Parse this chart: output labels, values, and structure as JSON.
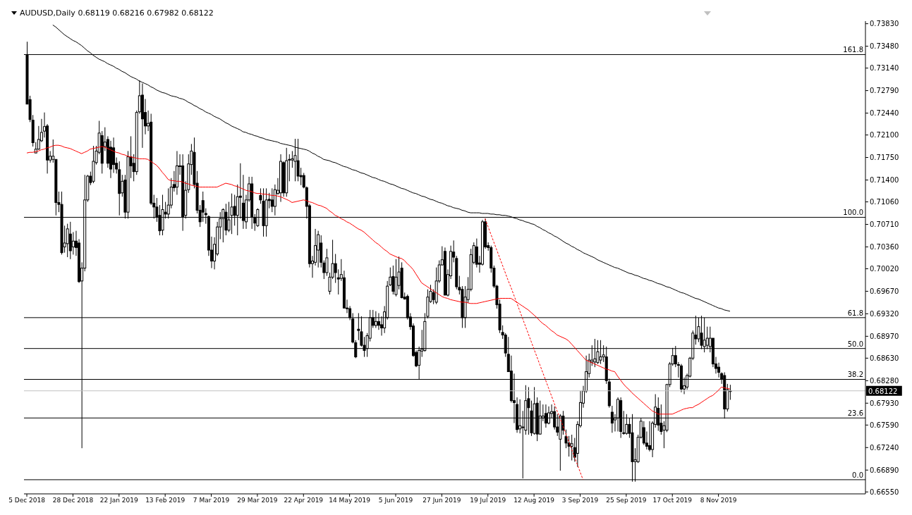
{
  "chart_data": {
    "type": "candlestick",
    "title": "AUDUSD,Daily 0.68119 0.68216 0.67982 0.68122",
    "categories": [
      "5 Dec 2018",
      null,
      null,
      null,
      null,
      null,
      null,
      null,
      null,
      null,
      null,
      null,
      null,
      null,
      null,
      null,
      "28 Dec 2018",
      null,
      null,
      null,
      null,
      null,
      null,
      null,
      null,
      null,
      null,
      null,
      null,
      null,
      null,
      null,
      "22 Jan 2019",
      null,
      null,
      null,
      null,
      null,
      null,
      null,
      null,
      null,
      null,
      null,
      null,
      null,
      null,
      null,
      "13 Feb 2019",
      null,
      null,
      null,
      null,
      null,
      null,
      null,
      null,
      null,
      null,
      null,
      null,
      null,
      null,
      null,
      "7 Mar 2019",
      null,
      null,
      null,
      null,
      null,
      null,
      null,
      null,
      null,
      null,
      null,
      null,
      null,
      null,
      null,
      "29 Mar 2019",
      null,
      null,
      null,
      null,
      null,
      null,
      null,
      null,
      null,
      null,
      null,
      null,
      null,
      null,
      null,
      "22 Apr 2019",
      null,
      null,
      null,
      null,
      null,
      null,
      null,
      null,
      null,
      null,
      null,
      null,
      null,
      null,
      null,
      "14 May 2019",
      null,
      null,
      null,
      null,
      null,
      null,
      null,
      null,
      null,
      null,
      null,
      null,
      null,
      null,
      null,
      "5 Jun 2019",
      null,
      null,
      null,
      null,
      null,
      null,
      null,
      null,
      null,
      null,
      null,
      null,
      null,
      null,
      null,
      "27 Jun 2019",
      null,
      null,
      null,
      null,
      null,
      null,
      null,
      null,
      null,
      null,
      null,
      null,
      null,
      null,
      null,
      "19 Jul 2019",
      null,
      null,
      null,
      null,
      null,
      null,
      null,
      null,
      null,
      null,
      null,
      null,
      null,
      null,
      null,
      "12 Aug 2019",
      null,
      null,
      null,
      null,
      null,
      null,
      null,
      null,
      null,
      null,
      null,
      null,
      null,
      null,
      null,
      "3 Sep 2019",
      null,
      null,
      null,
      null,
      null,
      null,
      null,
      null,
      null,
      null,
      null,
      null,
      null,
      null,
      null,
      "25 Sep 2019",
      null,
      null,
      null,
      null,
      null,
      null,
      null,
      null,
      null,
      null,
      null,
      null,
      null,
      null,
      null,
      "17 Oct 2019",
      null,
      null,
      null,
      null,
      null,
      null,
      null,
      null,
      null,
      null,
      null,
      null,
      null,
      null,
      null,
      "8 Nov 2019",
      null,
      null,
      null,
      null
    ],
    "ohlc": [
      [
        0.7335,
        0.7355,
        0.7258,
        0.7258
      ],
      [
        0.7265,
        0.7271,
        0.723,
        0.7234
      ],
      [
        0.7233,
        0.7241,
        0.7192,
        0.7198
      ],
      [
        0.7182,
        0.7199,
        0.7182,
        0.7188
      ],
      [
        0.7188,
        0.7224,
        0.7187,
        0.7203
      ],
      [
        0.7201,
        0.7235,
        0.7199,
        0.7214
      ],
      [
        0.7216,
        0.7245,
        0.7206,
        0.7223
      ],
      [
        0.7224,
        0.7227,
        0.715,
        0.7171
      ],
      [
        0.7171,
        0.7185,
        0.7167,
        0.7177
      ],
      [
        0.7172,
        0.7203,
        0.7167,
        0.7177
      ],
      [
        0.7172,
        0.7172,
        0.7085,
        0.7105
      ],
      [
        0.7105,
        0.7122,
        0.709,
        0.7102
      ],
      [
        0.7102,
        0.7122,
        0.7024,
        0.7027
      ],
      [
        0.7036,
        0.7069,
        0.7027,
        0.7042
      ],
      [
        0.7041,
        0.7072,
        0.702,
        0.7064
      ],
      [
        0.7056,
        0.7075,
        0.7017,
        0.703
      ],
      [
        0.7036,
        0.7059,
        0.7024,
        0.7045
      ],
      [
        0.7045,
        0.7061,
        0.7022,
        0.7035
      ],
      [
        0.7042,
        0.7048,
        0.698,
        0.6982
      ],
      [
        0.6983,
        0.7012,
        0.6723,
        0.7003
      ],
      [
        0.7003,
        0.7148,
        0.6998,
        0.7109
      ],
      [
        0.7109,
        0.7148,
        0.7106,
        0.7146
      ],
      [
        0.7146,
        0.7153,
        0.7132,
        0.7136
      ],
      [
        0.7138,
        0.7193,
        0.7135,
        0.7169
      ],
      [
        0.7167,
        0.7193,
        0.7164,
        0.7185
      ],
      [
        0.7183,
        0.7232,
        0.718,
        0.7213
      ],
      [
        0.7209,
        0.7216,
        0.715,
        0.7166
      ],
      [
        0.7192,
        0.7222,
        0.7185,
        0.7199
      ],
      [
        0.7203,
        0.7208,
        0.7159,
        0.7166
      ],
      [
        0.7191,
        0.7201,
        0.7143,
        0.7157
      ],
      [
        0.719,
        0.7206,
        0.7151,
        0.7164
      ],
      [
        0.7166,
        0.7175,
        0.715,
        0.7157
      ],
      [
        0.7156,
        0.7169,
        0.7085,
        0.7119
      ],
      [
        0.712,
        0.7148,
        0.7114,
        0.7138
      ],
      [
        0.714,
        0.7148,
        0.708,
        0.709
      ],
      [
        0.709,
        0.7185,
        0.708,
        0.7176
      ],
      [
        0.7176,
        0.7208,
        0.7143,
        0.7162
      ],
      [
        0.7166,
        0.718,
        0.7138,
        0.7153
      ],
      [
        0.7153,
        0.7248,
        0.7148,
        0.7245
      ],
      [
        0.7246,
        0.7295,
        0.7243,
        0.7271
      ],
      [
        0.7272,
        0.729,
        0.719,
        0.7235
      ],
      [
        0.7245,
        0.7266,
        0.7211,
        0.7224
      ],
      [
        0.7224,
        0.7248,
        0.7216,
        0.7228
      ],
      [
        0.723,
        0.7243,
        0.7101,
        0.7104
      ],
      [
        0.7104,
        0.7117,
        0.708,
        0.7098
      ],
      [
        0.7098,
        0.7112,
        0.7075,
        0.7082
      ],
      [
        0.7085,
        0.7101,
        0.7054,
        0.7061
      ],
      [
        0.7062,
        0.7117,
        0.7054,
        0.7094
      ],
      [
        0.709,
        0.7106,
        0.708,
        0.7087
      ],
      [
        0.7087,
        0.7127,
        0.708,
        0.7101
      ],
      [
        0.7101,
        0.7143,
        0.7096,
        0.7129
      ],
      [
        0.7133,
        0.7154,
        0.7122,
        0.7128
      ],
      [
        0.7129,
        0.7185,
        0.7117,
        0.7162
      ],
      [
        0.7162,
        0.718,
        0.7148,
        0.7162
      ],
      [
        0.7162,
        0.718,
        0.7061,
        0.7083
      ],
      [
        0.7085,
        0.7138,
        0.708,
        0.7124
      ],
      [
        0.7125,
        0.718,
        0.712,
        0.7165
      ],
      [
        0.7164,
        0.7196,
        0.7148,
        0.7185
      ],
      [
        0.7183,
        0.7206,
        0.7127,
        0.7133
      ],
      [
        0.7135,
        0.7154,
        0.7088,
        0.7093
      ],
      [
        0.7093,
        0.7101,
        0.7067,
        0.7075
      ],
      [
        0.7108,
        0.7122,
        0.7075,
        0.709
      ],
      [
        0.7088,
        0.7096,
        0.7072,
        0.7086
      ],
      [
        0.7083,
        0.7085,
        0.7022,
        0.7031
      ],
      [
        0.7031,
        0.7052,
        0.7003,
        0.7014
      ],
      [
        0.7014,
        0.7051,
        0.7001,
        0.704
      ],
      [
        0.7025,
        0.7075,
        0.7022,
        0.7067
      ],
      [
        0.7067,
        0.709,
        0.7048,
        0.708
      ],
      [
        0.708,
        0.7096,
        0.7043,
        0.7094
      ],
      [
        0.709,
        0.7103,
        0.7054,
        0.7062
      ],
      [
        0.7062,
        0.7106,
        0.7059,
        0.7078
      ],
      [
        0.7085,
        0.7119,
        0.7056,
        0.7098
      ],
      [
        0.7099,
        0.7117,
        0.7069,
        0.7085
      ],
      [
        0.7085,
        0.7133,
        0.7054,
        0.7114
      ],
      [
        0.7115,
        0.7166,
        0.708,
        0.7113
      ],
      [
        0.7104,
        0.7148,
        0.7064,
        0.7077
      ],
      [
        0.7075,
        0.7117,
        0.7064,
        0.7109
      ],
      [
        0.7109,
        0.7145,
        0.7106,
        0.7134
      ],
      [
        0.7134,
        0.7145,
        0.7064,
        0.7083
      ],
      [
        0.7082,
        0.7087,
        0.7061,
        0.7073
      ],
      [
        0.7069,
        0.7096,
        0.7067,
        0.7094
      ],
      [
        0.7116,
        0.7127,
        0.7103,
        0.7109
      ],
      [
        0.7107,
        0.7127,
        0.7052,
        0.7069
      ],
      [
        0.7069,
        0.7127,
        0.7052,
        0.7109
      ],
      [
        0.711,
        0.712,
        0.7096,
        0.7108
      ],
      [
        0.7109,
        0.7127,
        0.709,
        0.7099
      ],
      [
        0.7099,
        0.7133,
        0.7085,
        0.7125
      ],
      [
        0.7119,
        0.7143,
        0.7117,
        0.7124
      ],
      [
        0.712,
        0.718,
        0.7106,
        0.7169
      ],
      [
        0.7167,
        0.7169,
        0.7114,
        0.712
      ],
      [
        0.712,
        0.719,
        0.7114,
        0.717
      ],
      [
        0.7171,
        0.718,
        0.7138,
        0.7172
      ],
      [
        0.7171,
        0.7185,
        0.7159,
        0.7173
      ],
      [
        0.7169,
        0.7204,
        0.7138,
        0.7178
      ],
      [
        0.717,
        0.7204,
        0.7138,
        0.7146
      ],
      [
        0.7147,
        0.7159,
        0.7132,
        0.7145
      ],
      [
        0.7147,
        0.7151,
        0.7127,
        0.7129
      ],
      [
        0.7128,
        0.713,
        0.708,
        0.7099
      ],
      [
        0.71,
        0.7103,
        0.7004,
        0.701
      ],
      [
        0.701,
        0.7022,
        0.6988,
        0.7014
      ],
      [
        0.7012,
        0.7064,
        0.7007,
        0.7038
      ],
      [
        0.7031,
        0.7061,
        0.7004,
        0.7055
      ],
      [
        0.7042,
        0.7054,
        0.7004,
        0.7012
      ],
      [
        0.7011,
        0.7015,
        0.6986,
        0.6996
      ],
      [
        0.6996,
        0.7033,
        0.6991,
        0.7019
      ],
      [
        0.6967,
        0.6996,
        0.6962,
        0.6989
      ],
      [
        0.6989,
        0.7047,
        0.6986,
        0.701
      ],
      [
        0.701,
        0.7025,
        0.698,
        0.6996
      ],
      [
        0.6988,
        0.7001,
        0.6962,
        0.6986
      ],
      [
        0.6987,
        0.7017,
        0.6983,
        0.6993
      ],
      [
        0.6988,
        0.6999,
        0.694,
        0.6941
      ],
      [
        0.6941,
        0.6954,
        0.6933,
        0.694
      ],
      [
        0.694,
        0.6944,
        0.6922,
        0.6926
      ],
      [
        0.6924,
        0.6933,
        0.6886,
        0.6888
      ],
      [
        0.6887,
        0.6891,
        0.6863,
        0.6865
      ],
      [
        0.6908,
        0.6933,
        0.6891,
        0.6906
      ],
      [
        0.6904,
        0.6928,
        0.6881,
        0.6883
      ],
      [
        0.6883,
        0.6896,
        0.6865,
        0.6875
      ],
      [
        0.6878,
        0.6902,
        0.6865,
        0.6898
      ],
      [
        0.6894,
        0.6938,
        0.6889,
        0.6926
      ],
      [
        0.6926,
        0.6938,
        0.691,
        0.6914
      ],
      [
        0.6914,
        0.6936,
        0.691,
        0.692
      ],
      [
        0.692,
        0.6933,
        0.6907,
        0.6914
      ],
      [
        0.6915,
        0.6928,
        0.6898,
        0.691
      ],
      [
        0.691,
        0.6944,
        0.6902,
        0.6935
      ],
      [
        0.6926,
        0.6983,
        0.6923,
        0.6975
      ],
      [
        0.6977,
        0.7004,
        0.6975,
        0.6989
      ],
      [
        0.699,
        0.7007,
        0.6962,
        0.6967
      ],
      [
        0.6962,
        0.7017,
        0.6959,
        0.6989
      ],
      [
        0.6976,
        0.7021,
        0.697,
        0.6997
      ],
      [
        0.7003,
        0.7012,
        0.6956,
        0.6957
      ],
      [
        0.6958,
        0.6965,
        0.6954,
        0.6955
      ],
      [
        0.6959,
        0.6962,
        0.6923,
        0.6926
      ],
      [
        0.6927,
        0.6933,
        0.6907,
        0.6912
      ],
      [
        0.6913,
        0.6917,
        0.6865,
        0.6867
      ],
      [
        0.6872,
        0.6875,
        0.6849,
        0.6851
      ],
      [
        0.6852,
        0.6881,
        0.683,
        0.6875
      ],
      [
        0.6874,
        0.6907,
        0.6865,
        0.6877
      ],
      [
        0.6875,
        0.6933,
        0.6873,
        0.692
      ],
      [
        0.6928,
        0.697,
        0.6925,
        0.6958
      ],
      [
        0.6951,
        0.6977,
        0.6949,
        0.6967
      ],
      [
        0.6965,
        0.697,
        0.6947,
        0.6954
      ],
      [
        0.695,
        0.7004,
        0.6947,
        0.6983
      ],
      [
        0.6983,
        0.7015,
        0.698,
        0.7008
      ],
      [
        0.7008,
        0.7037,
        0.7007,
        0.7016
      ],
      [
        0.7029,
        0.7035,
        0.6961,
        0.6961
      ],
      [
        0.6961,
        0.7001,
        0.6959,
        0.6993
      ],
      [
        0.6991,
        0.7038,
        0.6986,
        0.7029
      ],
      [
        0.7028,
        0.7046,
        0.7012,
        0.702
      ],
      [
        0.7018,
        0.7022,
        0.697,
        0.6974
      ],
      [
        0.6973,
        0.6991,
        0.6962,
        0.6969
      ],
      [
        0.697,
        0.6975,
        0.691,
        0.6926
      ],
      [
        0.6926,
        0.6975,
        0.691,
        0.6958
      ],
      [
        0.6954,
        0.6989,
        0.6949,
        0.697
      ],
      [
        0.697,
        0.7033,
        0.6967,
        0.7024
      ],
      [
        0.7012,
        0.7043,
        0.7009,
        0.7038
      ],
      [
        0.7036,
        0.7049,
        0.7004,
        0.7009
      ],
      [
        0.7011,
        0.7022,
        0.6996,
        0.7009
      ],
      [
        0.7009,
        0.7078,
        0.7007,
        0.7075
      ],
      [
        0.7075,
        0.708,
        0.7033,
        0.7036
      ],
      [
        0.7038,
        0.7043,
        0.703,
        0.7035
      ],
      [
        0.7035,
        0.7038,
        0.6996,
        0.7003
      ],
      [
        0.7003,
        0.7007,
        0.6972,
        0.6975
      ],
      [
        0.6975,
        0.6977,
        0.694,
        0.6946
      ],
      [
        0.6947,
        0.6954,
        0.6902,
        0.6907
      ],
      [
        0.6903,
        0.6914,
        0.6893,
        0.6899
      ],
      [
        0.6899,
        0.6902,
        0.6865,
        0.6871
      ],
      [
        0.6869,
        0.6896,
        0.6842,
        0.6842
      ],
      [
        0.6843,
        0.6867,
        0.6794,
        0.6797
      ],
      [
        0.6797,
        0.6839,
        0.6762,
        0.6794
      ],
      [
        0.6791,
        0.6802,
        0.6747,
        0.6752
      ],
      [
        0.6753,
        0.6799,
        0.6746,
        0.6758
      ],
      [
        0.6755,
        0.6781,
        0.6676,
        0.6756
      ],
      [
        0.6751,
        0.6821,
        0.6744,
        0.6797
      ],
      [
        0.68,
        0.6818,
        0.6744,
        0.6786
      ],
      [
        0.6781,
        0.6797,
        0.6742,
        0.6747
      ],
      [
        0.6746,
        0.6818,
        0.6744,
        0.6792
      ],
      [
        0.6793,
        0.6802,
        0.6734,
        0.6745
      ],
      [
        0.6745,
        0.6797,
        0.6744,
        0.6773
      ],
      [
        0.677,
        0.6791,
        0.6765,
        0.6773
      ],
      [
        0.6777,
        0.6791,
        0.6755,
        0.6762
      ],
      [
        0.6762,
        0.6788,
        0.676,
        0.6778
      ],
      [
        0.6777,
        0.6791,
        0.677,
        0.678
      ],
      [
        0.678,
        0.6788,
        0.6752,
        0.6756
      ],
      [
        0.6756,
        0.6776,
        0.6742,
        0.6748
      ],
      [
        0.6737,
        0.6776,
        0.6688,
        0.6773
      ],
      [
        0.6773,
        0.6781,
        0.6744,
        0.6751
      ],
      [
        0.6741,
        0.6752,
        0.6723,
        0.6731
      ],
      [
        0.6731,
        0.6742,
        0.671,
        0.6726
      ],
      [
        0.6726,
        0.6744,
        0.6704,
        0.673
      ],
      [
        0.6724,
        0.6739,
        0.6702,
        0.6709
      ],
      [
        0.6715,
        0.6765,
        0.6694,
        0.676
      ],
      [
        0.6758,
        0.6812,
        0.6755,
        0.6794
      ],
      [
        0.6793,
        0.682,
        0.6786,
        0.6812
      ],
      [
        0.6812,
        0.6867,
        0.6809,
        0.6842
      ],
      [
        0.6839,
        0.687,
        0.6833,
        0.686
      ],
      [
        0.6857,
        0.6883,
        0.6851,
        0.686
      ],
      [
        0.6857,
        0.6893,
        0.6849,
        0.6862
      ],
      [
        0.6856,
        0.6891,
        0.6854,
        0.6873
      ],
      [
        0.686,
        0.6891,
        0.6854,
        0.6865
      ],
      [
        0.6865,
        0.6883,
        0.6857,
        0.6868
      ],
      [
        0.6865,
        0.6881,
        0.6823,
        0.6828
      ],
      [
        0.6826,
        0.6831,
        0.6786,
        0.6789
      ],
      [
        0.6779,
        0.6789,
        0.6747,
        0.6762
      ],
      [
        0.6767,
        0.6776,
        0.6749,
        0.677
      ],
      [
        0.677,
        0.6802,
        0.6749,
        0.6799
      ],
      [
        0.6797,
        0.6802,
        0.6739,
        0.6749
      ],
      [
        0.6747,
        0.6781,
        0.6744,
        0.6746
      ],
      [
        0.6746,
        0.6776,
        0.6744,
        0.676
      ],
      [
        0.676,
        0.677,
        0.6739,
        0.6746
      ],
      [
        0.6747,
        0.6776,
        0.6671,
        0.6702
      ],
      [
        0.6702,
        0.6723,
        0.6671,
        0.6705
      ],
      [
        0.6702,
        0.6744,
        0.67,
        0.674
      ],
      [
        0.674,
        0.677,
        0.6738,
        0.6765
      ],
      [
        0.6755,
        0.6765,
        0.6728,
        0.6731
      ],
      [
        0.6731,
        0.6749,
        0.6721,
        0.6726
      ],
      [
        0.6727,
        0.6765,
        0.6718,
        0.6721
      ],
      [
        0.6721,
        0.6765,
        0.6709,
        0.6762
      ],
      [
        0.676,
        0.6807,
        0.6755,
        0.6787
      ],
      [
        0.6785,
        0.6802,
        0.675,
        0.6759
      ],
      [
        0.6762,
        0.6791,
        0.6744,
        0.6749
      ],
      [
        0.6751,
        0.6765,
        0.6723,
        0.6758
      ],
      [
        0.6751,
        0.6823,
        0.6748,
        0.6822
      ],
      [
        0.6822,
        0.6857,
        0.6818,
        0.6854
      ],
      [
        0.6854,
        0.6879,
        0.6851,
        0.6867
      ],
      [
        0.6867,
        0.6882,
        0.6849,
        0.6854
      ],
      [
        0.6853,
        0.6857,
        0.6833,
        0.6852
      ],
      [
        0.6851,
        0.6854,
        0.681,
        0.6815
      ],
      [
        0.6815,
        0.6833,
        0.6807,
        0.682
      ],
      [
        0.6818,
        0.6839,
        0.6814,
        0.6836
      ],
      [
        0.6835,
        0.6865,
        0.6833,
        0.6863
      ],
      [
        0.6863,
        0.6906,
        0.686,
        0.6902
      ],
      [
        0.6899,
        0.6929,
        0.6884,
        0.6893
      ],
      [
        0.6893,
        0.6926,
        0.6888,
        0.6912
      ],
      [
        0.6902,
        0.6929,
        0.6877,
        0.6883
      ],
      [
        0.6881,
        0.6926,
        0.6872,
        0.6891
      ],
      [
        0.6883,
        0.6912,
        0.6877,
        0.6894
      ],
      [
        0.6881,
        0.6912,
        0.6872,
        0.6894
      ],
      [
        0.6894,
        0.6894,
        0.6849,
        0.6854
      ],
      [
        0.6854,
        0.6865,
        0.6839,
        0.6847
      ],
      [
        0.6849,
        0.6856,
        0.6833,
        0.6841
      ],
      [
        0.6839,
        0.6841,
        0.6823,
        0.683
      ],
      [
        0.6836,
        0.6841,
        0.6769,
        0.6784
      ],
      [
        0.6784,
        0.6823,
        0.678,
        0.6814
      ],
      [
        0.68119,
        0.68216,
        0.67982,
        0.68122
      ]
    ],
    "series": [
      {
        "type": "line",
        "color": "#ff0000",
        "values": [
          0.7182,
          0.7183,
          0.7183,
          0.7184,
          0.7185,
          0.7187,
          0.7188,
          0.719,
          0.7191,
          0.7193,
          0.7194,
          0.7194,
          0.7193,
          0.7191,
          0.719,
          0.7189,
          0.7187,
          0.7185,
          0.7183,
          0.7181,
          0.7183,
          0.7185,
          0.7188,
          0.7189,
          0.719,
          0.7191,
          0.7192,
          0.7191,
          0.7189,
          0.7187,
          0.7185,
          0.7183,
          0.7182,
          0.718,
          0.7179,
          0.7177,
          0.7176,
          0.7175,
          0.7174,
          0.7173,
          0.7173,
          0.7173,
          0.7172,
          0.7169,
          0.7166,
          0.7163,
          0.7158,
          0.7152,
          0.7147,
          0.7141,
          0.7139,
          0.7139,
          0.7138,
          0.7138,
          0.7137,
          0.7135,
          0.7134,
          0.7132,
          0.7131,
          0.713,
          0.7129,
          0.7129,
          0.7129,
          0.7129,
          0.7129,
          0.7129,
          0.7129,
          0.7131,
          0.7133,
          0.7135,
          0.7134,
          0.7133,
          0.7131,
          0.713,
          0.7128,
          0.7126,
          0.7124,
          0.7123,
          0.7122,
          0.712,
          0.7119,
          0.7119,
          0.7118,
          0.7118,
          0.7117,
          0.7116,
          0.7116,
          0.7115,
          0.7114,
          0.7112,
          0.711,
          0.7108,
          0.7105,
          0.7106,
          0.7107,
          0.7108,
          0.7109,
          0.7108,
          0.7106,
          0.7105,
          0.7103,
          0.7101,
          0.71,
          0.7098,
          0.7096,
          0.7092,
          0.7089,
          0.7085,
          0.7083,
          0.708,
          0.7078,
          0.7075,
          0.7073,
          0.707,
          0.7067,
          0.7064,
          0.7062,
          0.7059,
          0.7055,
          0.7051,
          0.7047,
          0.7043,
          0.704,
          0.7036,
          0.7032,
          0.7029,
          0.7025,
          0.7023,
          0.7021,
          0.7019,
          0.7018,
          0.7015,
          0.701,
          0.7006,
          0.7001,
          0.6994,
          0.6987,
          0.698,
          0.6977,
          0.6974,
          0.6971,
          0.6968,
          0.6965,
          0.6962,
          0.6959,
          0.6957,
          0.6956,
          0.6954,
          0.6953,
          0.6952,
          0.6951,
          0.695,
          0.695,
          0.6949,
          0.6948,
          0.6948,
          0.6948,
          0.6949,
          0.695,
          0.6951,
          0.6952,
          0.6953,
          0.6954,
          0.6955,
          0.6956,
          0.6956,
          0.6956,
          0.6956,
          0.6956,
          0.6953,
          0.695,
          0.6947,
          0.6944,
          0.6941,
          0.6938,
          0.6934,
          0.693,
          0.6926,
          0.6921,
          0.6917,
          0.6914,
          0.691,
          0.6906,
          0.6903,
          0.6899,
          0.6897,
          0.6895,
          0.6893,
          0.689,
          0.6885,
          0.688,
          0.6875,
          0.687,
          0.6865,
          0.686,
          0.6858,
          0.6856,
          0.6854,
          0.6852,
          0.685,
          0.6848,
          0.6846,
          0.6845,
          0.6843,
          0.6842,
          0.6835,
          0.6829,
          0.6823,
          0.6818,
          0.6814,
          0.6809,
          0.6805,
          0.6801,
          0.6797,
          0.6793,
          0.6789,
          0.6785,
          0.6781,
          0.6779,
          0.6776,
          0.6776,
          0.6776,
          0.6776,
          0.6776,
          0.6776,
          0.6778,
          0.678,
          0.6782,
          0.6784,
          0.6785,
          0.6786,
          0.6786,
          0.6789,
          0.6791,
          0.6794,
          0.6797,
          0.68,
          0.6803,
          0.6805,
          0.6809,
          0.6813,
          0.6818,
          0.6817,
          0.6816,
          0.6815
        ]
      },
      {
        "type": "line",
        "color": "#000000",
        "values": [
          null,
          null,
          null,
          null,
          null,
          null,
          null,
          null,
          null,
          0.7381,
          0.7378,
          0.7374,
          0.737,
          0.7366,
          0.7363,
          0.736,
          0.7357,
          0.7355,
          0.7352,
          0.7349,
          0.7345,
          0.7341,
          0.7338,
          0.7334,
          0.7331,
          0.7328,
          0.7326,
          0.7324,
          0.7321,
          0.7319,
          0.7317,
          0.7314,
          0.7312,
          0.7309,
          0.7307,
          0.7304,
          0.7301,
          0.7299,
          0.7297,
          0.7294,
          0.7292,
          0.729,
          0.7288,
          0.7285,
          0.7283,
          0.728,
          0.7278,
          0.7276,
          0.7275,
          0.7273,
          0.7271,
          0.727,
          0.7269,
          0.7267,
          0.7266,
          0.7264,
          0.7261,
          0.7259,
          0.7256,
          0.7254,
          0.7251,
          0.7249,
          0.7246,
          0.7244,
          0.7242,
          0.7239,
          0.7237,
          0.7235,
          0.7232,
          0.7229,
          0.7227,
          0.7224,
          0.7222,
          0.722,
          0.7218,
          0.7215,
          0.7214,
          0.7212,
          0.7211,
          0.7209,
          0.7208,
          0.7206,
          0.7205,
          0.7203,
          0.7202,
          0.7201,
          0.72,
          0.7199,
          0.7197,
          0.7196,
          0.7195,
          0.7194,
          0.7193,
          0.7191,
          0.719,
          0.7189,
          0.7188,
          0.7187,
          0.7185,
          0.7182,
          0.718,
          0.7177,
          0.7175,
          0.7172,
          0.7171,
          0.717,
          0.7168,
          0.7167,
          0.7165,
          0.7163,
          0.7161,
          0.716,
          0.7158,
          0.7156,
          0.7155,
          0.7153,
          0.7151,
          0.715,
          0.7148,
          0.7146,
          0.7144,
          0.7143,
          0.7141,
          0.7139,
          0.7138,
          0.7136,
          0.7134,
          0.7133,
          0.7131,
          0.7129,
          0.7127,
          0.7126,
          0.7124,
          0.7122,
          0.712,
          0.7119,
          0.7117,
          0.7115,
          0.7114,
          0.7112,
          0.711,
          0.7109,
          0.7107,
          0.7105,
          0.7104,
          0.7102,
          0.71,
          0.7099,
          0.7097,
          0.7096,
          0.7095,
          0.7093,
          0.7092,
          0.709,
          0.7089,
          0.7089,
          0.7089,
          0.7089,
          0.7088,
          0.7088,
          0.7088,
          0.7087,
          0.7087,
          0.7086,
          0.7086,
          0.7085,
          0.7085,
          0.7084,
          0.7083,
          0.7081,
          0.708,
          0.7078,
          0.7077,
          0.7075,
          0.7074,
          0.7072,
          0.7071,
          0.7068,
          0.7066,
          0.7063,
          0.7061,
          0.7058,
          0.7056,
          0.7053,
          0.7051,
          0.7048,
          0.7045,
          0.7042,
          0.704,
          0.7037,
          0.7035,
          0.7032,
          0.703,
          0.7027,
          0.7025,
          0.7023,
          0.7021,
          0.7019,
          0.7016,
          0.7014,
          0.7012,
          0.701,
          0.7008,
          0.7006,
          0.7004,
          0.7003,
          0.7001,
          0.6999,
          0.6997,
          0.6995,
          0.6994,
          0.6992,
          0.6991,
          0.6989,
          0.6987,
          0.6986,
          0.6984,
          0.6983,
          0.6981,
          0.6979,
          0.6978,
          0.6976,
          0.6974,
          0.6973,
          0.6971,
          0.6969,
          0.6967,
          0.6965,
          0.6964,
          0.6962,
          0.696,
          0.6958,
          0.6956,
          0.6955,
          0.6953,
          0.6951,
          0.6949,
          0.6947,
          0.6945,
          0.6943,
          0.6941,
          0.694,
          0.6938,
          0.6937,
          0.6936
        ]
      },
      {
        "type": "line",
        "color": "#ff0000",
        "line_style": "dashed",
        "values": [
          null,
          null,
          null,
          null,
          null,
          null,
          null,
          null,
          null,
          null,
          null,
          null,
          null,
          null,
          null,
          null,
          null,
          null,
          null,
          null,
          null,
          null,
          null,
          null,
          null,
          null,
          null,
          null,
          null,
          null,
          null,
          null,
          null,
          null,
          null,
          null,
          null,
          null,
          null,
          null,
          null,
          null,
          null,
          null,
          null,
          null,
          null,
          null,
          null,
          null,
          null,
          null,
          null,
          null,
          null,
          null,
          null,
          null,
          null,
          null,
          null,
          null,
          null,
          null,
          null,
          null,
          null,
          null,
          null,
          null,
          null,
          null,
          null,
          null,
          null,
          null,
          null,
          null,
          null,
          null,
          null,
          null,
          null,
          null,
          null,
          null,
          null,
          null,
          null,
          null,
          null,
          null,
          null,
          null,
          null,
          null,
          null,
          null,
          null,
          null,
          null,
          null,
          null,
          null,
          null,
          null,
          null,
          null,
          null,
          null,
          null,
          null,
          null,
          null,
          null,
          null,
          null,
          null,
          null,
          null,
          null,
          null,
          null,
          null,
          null,
          null,
          null,
          null,
          null,
          null,
          null,
          null,
          null,
          null,
          null,
          null,
          null,
          null,
          null,
          null,
          null,
          null,
          null,
          null,
          null,
          null,
          null,
          null,
          null,
          null,
          null,
          null,
          null,
          null,
          null,
          null,
          null,
          null,
          null,
          0.708,
          0.7068,
          0.7056,
          0.7044,
          0.7032,
          0.702,
          0.7008,
          0.6996,
          0.6984,
          0.6973,
          0.6961,
          0.6949,
          0.6937,
          0.6925,
          0.6913,
          0.6901,
          0.6889,
          0.6877,
          0.6865,
          0.6853,
          0.6841,
          0.6829,
          0.6817,
          0.6805,
          0.6793,
          0.6781,
          0.677,
          0.6758,
          0.6746,
          0.6734,
          0.6722,
          0.671,
          0.6698,
          0.6686,
          0.6674,
          null,
          null,
          null,
          null,
          null,
          null,
          null,
          null,
          null,
          null,
          null,
          null,
          null,
          null,
          null,
          null,
          null,
          null,
          null,
          null,
          null,
          null,
          null,
          null,
          null,
          null,
          null,
          null,
          null,
          null,
          null,
          null,
          null,
          null,
          null,
          null,
          null,
          null,
          null,
          null,
          null,
          null,
          null,
          null,
          null,
          null,
          null,
          null,
          null,
          null,
          null
        ]
      }
    ],
    "ylim": [
      0.6652,
      0.7387
    ],
    "yticks": [
      {
        "value": 0.7383,
        "label": "0.73830"
      },
      {
        "value": 0.7348,
        "label": "0.73480"
      },
      {
        "value": 0.7314,
        "label": "0.73140"
      },
      {
        "value": 0.7279,
        "label": "0.72790"
      },
      {
        "value": 0.7244,
        "label": "0.72440"
      },
      {
        "value": 0.721,
        "label": "0.72100"
      },
      {
        "value": 0.7175,
        "label": "0.71750"
      },
      {
        "value": 0.714,
        "label": "0.71400"
      },
      {
        "value": 0.7106,
        "label": "0.71060"
      },
      {
        "value": 0.7071,
        "label": "0.70710"
      },
      {
        "value": 0.7036,
        "label": "0.70360"
      },
      {
        "value": 0.7002,
        "label": "0.70020"
      },
      {
        "value": 0.6967,
        "label": "0.69670"
      },
      {
        "value": 0.6932,
        "label": "0.69320"
      },
      {
        "value": 0.6897,
        "label": "0.68970"
      },
      {
        "value": 0.6863,
        "label": "0.68630"
      },
      {
        "value": 0.6828,
        "label": "0.68280"
      },
      {
        "value": 0.6793,
        "label": "0.67930"
      },
      {
        "value": 0.6759,
        "label": "0.67590"
      },
      {
        "value": 0.6724,
        "label": "0.67240"
      },
      {
        "value": 0.6689,
        "label": "0.66890"
      },
      {
        "value": 0.6655,
        "label": "0.66550"
      }
    ],
    "ref_lines": [
      {
        "axis": "y",
        "value": 0.7335,
        "color": "#000000"
      },
      {
        "axis": "y",
        "value": 0.7082,
        "color": "#000000"
      },
      {
        "axis": "y",
        "value": 0.6926,
        "color": "#000000"
      },
      {
        "axis": "y",
        "value": 0.6878,
        "color": "#000000"
      },
      {
        "axis": "y",
        "value": 0.683,
        "color": "#000000"
      },
      {
        "axis": "y",
        "value": 0.677,
        "color": "#000000"
      },
      {
        "axis": "y",
        "value": 0.6674,
        "color": "#000000"
      },
      {
        "axis": "y",
        "value": 0.68122,
        "label": "0.68122",
        "color": "#c0c0c0"
      }
    ],
    "annotations": [
      {
        "text": "161.8",
        "y": 0.7335
      },
      {
        "text": "100.0",
        "y": 0.7082
      },
      {
        "text": "61.8",
        "y": 0.6926
      },
      {
        "text": "50.0",
        "y": 0.6878
      },
      {
        "text": "38.2",
        "y": 0.683
      },
      {
        "text": "23.6",
        "y": 0.677
      },
      {
        "text": "0.0",
        "y": 0.6674
      }
    ]
  }
}
